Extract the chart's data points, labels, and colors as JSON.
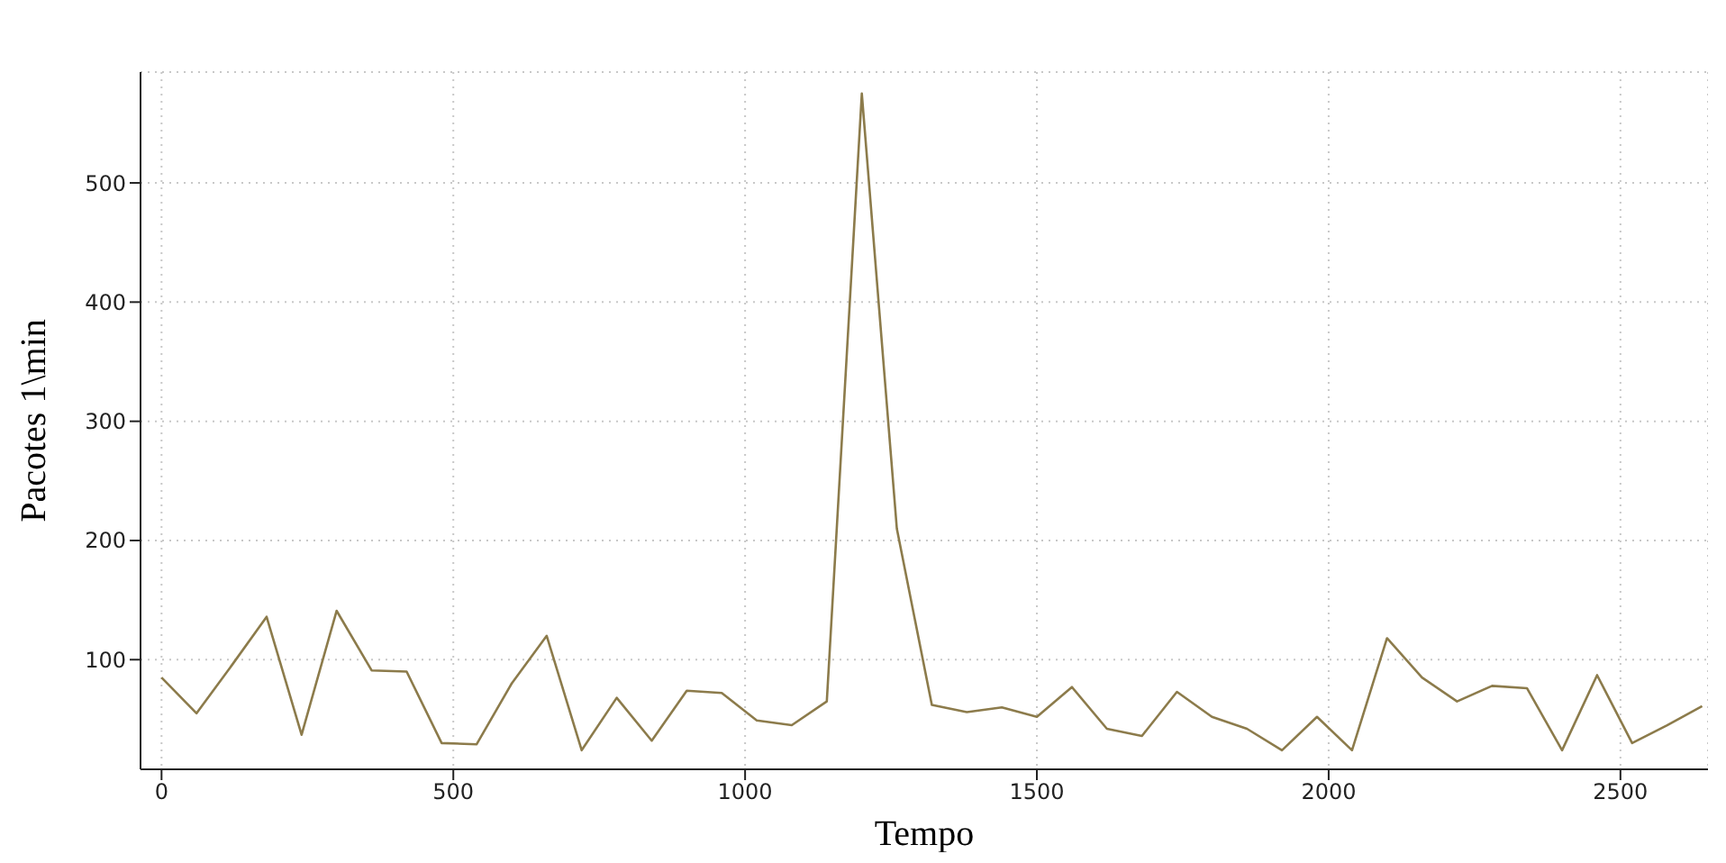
{
  "chart_data": {
    "type": "line",
    "xlabel": "Tempo",
    "ylabel": "Pacotes 1\\min",
    "x": [
      0,
      60,
      120,
      180,
      240,
      300,
      360,
      420,
      480,
      540,
      600,
      660,
      720,
      780,
      840,
      900,
      960,
      1020,
      1080,
      1140,
      1200,
      1260,
      1320,
      1380,
      1440,
      1500,
      1560,
      1620,
      1680,
      1740,
      1800,
      1860,
      1920,
      1980,
      2040,
      2100,
      2160,
      2220,
      2280,
      2340,
      2400,
      2460,
      2520,
      2580,
      2640
    ],
    "series": [
      {
        "color": "#8c7b4b",
        "values": [
          85,
          55,
          95,
          136,
          37,
          141,
          91,
          90,
          30,
          29,
          80,
          120,
          24,
          68,
          32,
          74,
          72,
          49,
          45,
          65,
          575,
          210,
          62,
          56,
          60,
          52,
          77,
          42,
          36,
          73,
          52,
          42,
          24,
          52,
          24,
          118,
          85,
          65,
          78,
          76,
          24,
          87,
          30,
          45,
          61
        ]
      }
    ],
    "xlim": [
      -36,
      2650
    ],
    "ylim": [
      8,
      593
    ],
    "xticks": [
      0,
      500,
      1000,
      1500,
      2000,
      2500
    ],
    "yticks": [
      100,
      200,
      300,
      400,
      500
    ],
    "grid": true,
    "legend": false,
    "marker": "none",
    "line_style": "solid"
  }
}
